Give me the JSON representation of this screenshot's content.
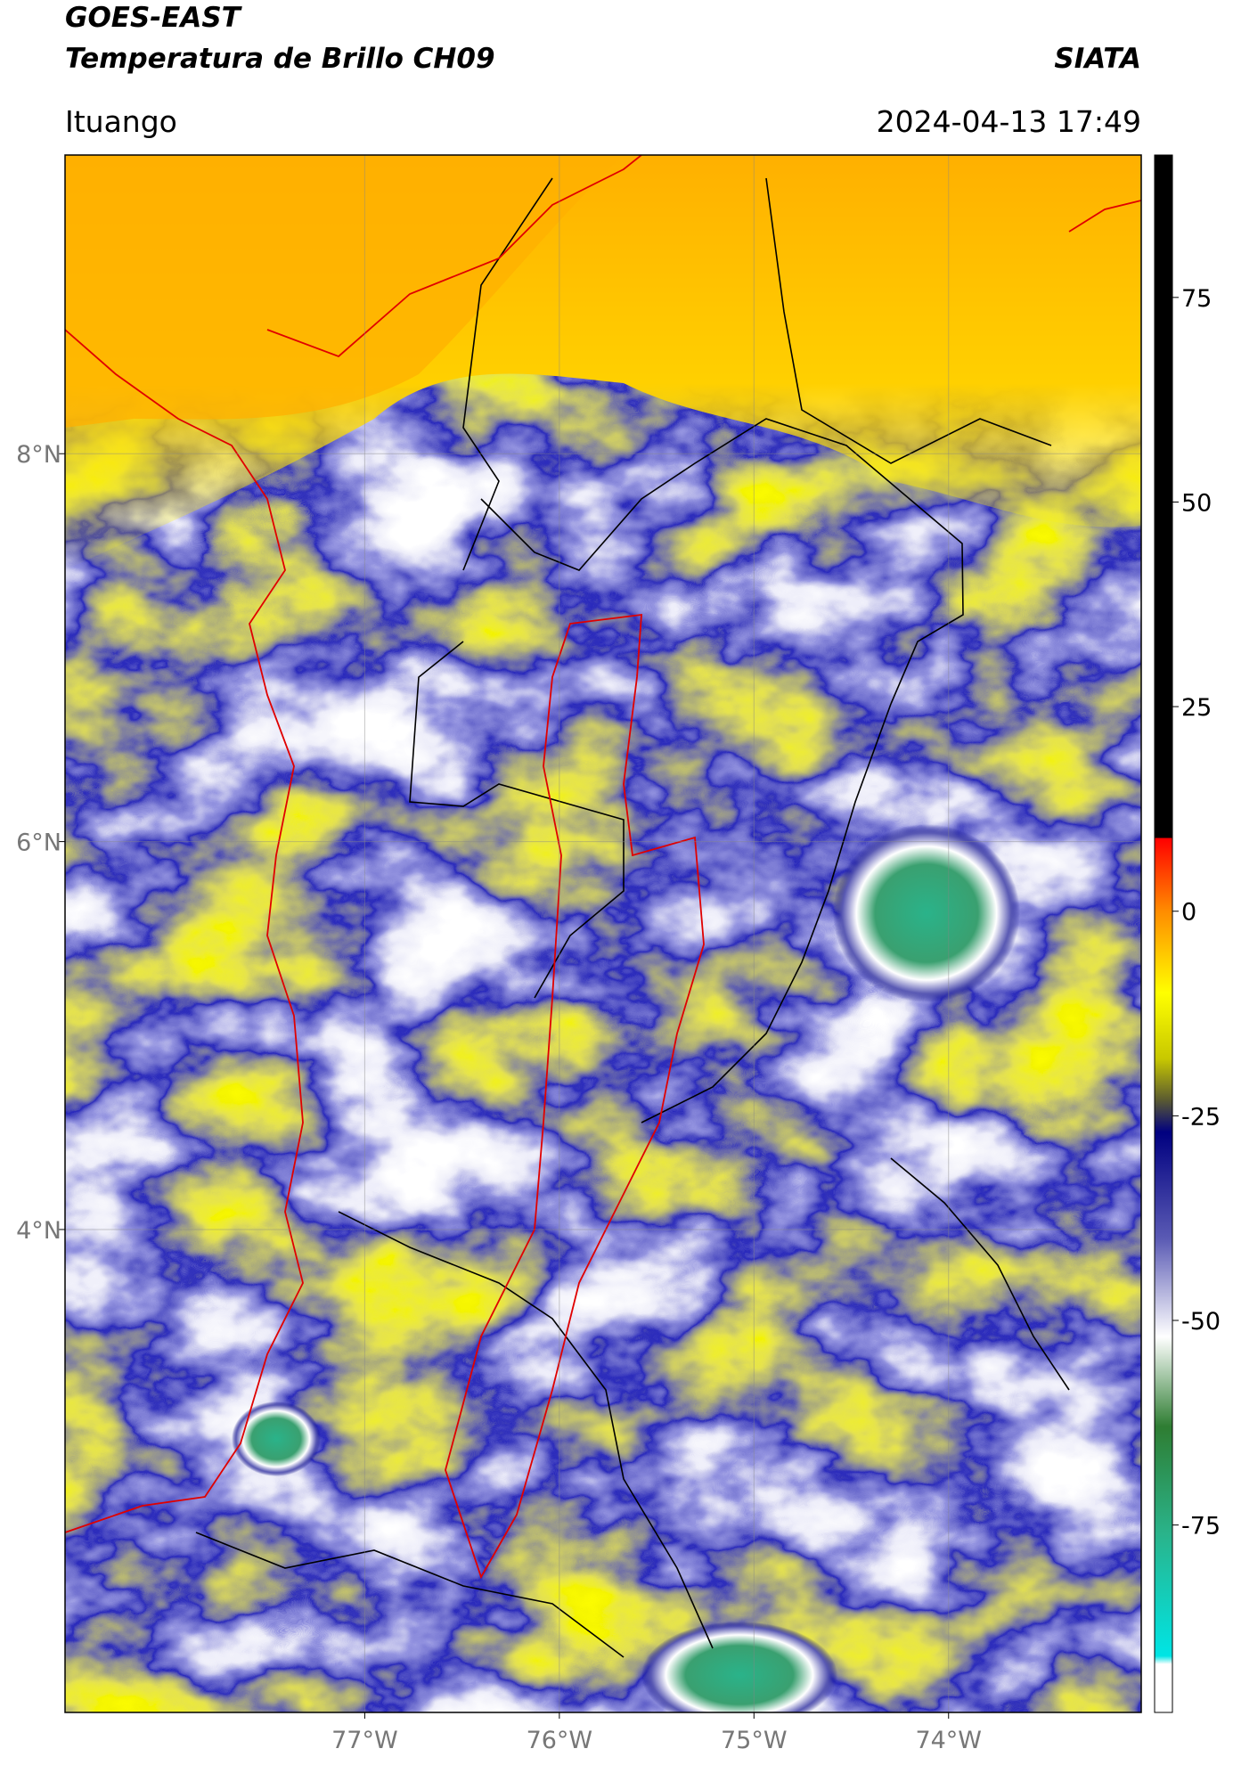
{
  "header": {
    "title": "GOES-EAST",
    "subtitle": "Temperatura de Brillo CH09",
    "source": "SIATA",
    "location": "Ituango",
    "timestamp": "2024-04-13 17:49"
  },
  "map": {
    "type": "map",
    "xlim": [
      -78.54,
      -73.01
    ],
    "ylim": [
      1.51,
      9.54
    ],
    "xticks": [
      {
        "value": -77,
        "label": "77°W"
      },
      {
        "value": -76,
        "label": "76°W"
      },
      {
        "value": -75,
        "label": "75°W"
      },
      {
        "value": -74,
        "label": "74°W"
      }
    ],
    "yticks": [
      {
        "value": 8,
        "label": "8°N"
      },
      {
        "value": 6,
        "label": "6°N"
      },
      {
        "value": 4,
        "label": "4°N"
      }
    ],
    "grid": true
  },
  "colorbar": {
    "lim": [
      -97.9,
      92.4
    ],
    "ticks": [
      75,
      50,
      25,
      0,
      -25,
      -50,
      -75
    ],
    "stops": [
      {
        "value": 92.4,
        "color": "#000000"
      },
      {
        "value": 9,
        "color": "#000000"
      },
      {
        "value": 8.9,
        "color": "#ff0000"
      },
      {
        "value": 0,
        "color": "#ff8c00"
      },
      {
        "value": -10,
        "color": "#ffff00"
      },
      {
        "value": -18,
        "color": "#c8c800"
      },
      {
        "value": -23,
        "color": "#5c5c30"
      },
      {
        "value": -27,
        "color": "#000080"
      },
      {
        "value": -40,
        "color": "#5a5ab4"
      },
      {
        "value": -52,
        "color": "#ffffff"
      },
      {
        "value": -63,
        "color": "#2e7d32"
      },
      {
        "value": -76,
        "color": "#2ab38a"
      },
      {
        "value": -91,
        "color": "#00e5e5"
      },
      {
        "value": -92,
        "color": "#ffffff"
      },
      {
        "value": -97.9,
        "color": "#ffffff"
      }
    ]
  }
}
